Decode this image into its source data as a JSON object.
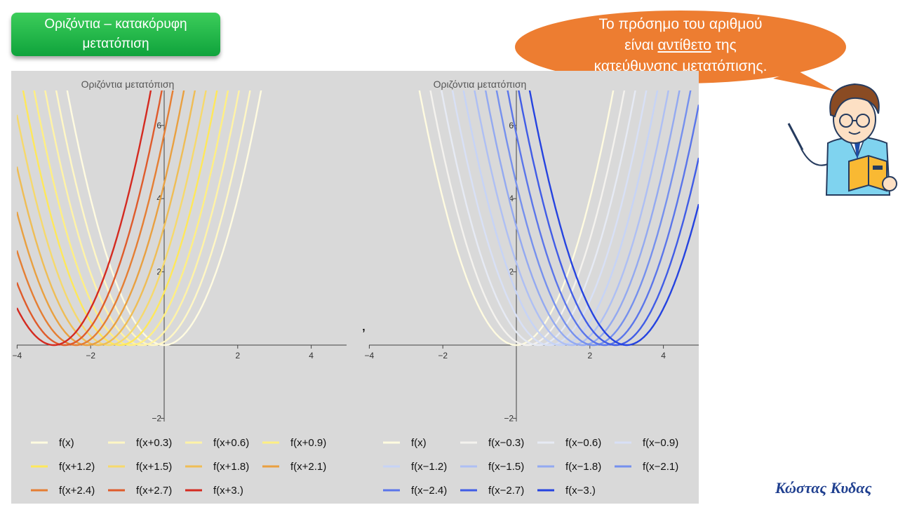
{
  "header": {
    "title_line1": "Οριζόντια – κατακόρυφη",
    "title_line2": "μετατόπιση"
  },
  "callout": {
    "line1": "Το πρόσημο του αριθμού",
    "line2_pre": "είναι ",
    "line2_underlined": "αντίθετο",
    "line2_post": " της",
    "line3": "κατεύθυνσης μετατόπισης.",
    "bubble_color": "#ed7d31"
  },
  "separator": "‚",
  "signature": "Κώστας Κυδας",
  "chart_data": [
    {
      "type": "line",
      "title": "Οριζόντια μετατόπιση",
      "function": "f(x) = x^2",
      "xlim": [
        -4,
        5
      ],
      "ylim": [
        -2,
        7
      ],
      "xticks": [
        "−4",
        "−2",
        "2",
        "4"
      ],
      "yticks": [
        "−2",
        "2",
        "4",
        "6"
      ],
      "series": [
        {
          "name": "f(x)",
          "shift": 0,
          "color": "#fffbe0"
        },
        {
          "name": "f(x+0.3)",
          "shift": -0.3,
          "color": "#fff7c4"
        },
        {
          "name": "f(x+0.6)",
          "shift": -0.6,
          "color": "#fff3a6"
        },
        {
          "name": "f(x+0.9)",
          "shift": -0.9,
          "color": "#ffef82"
        },
        {
          "name": "f(x+1.2)",
          "shift": -1.2,
          "color": "#ffe85a"
        },
        {
          "name": "f(x+1.5)",
          "shift": -1.5,
          "color": "#f6d96c"
        },
        {
          "name": "f(x+1.8)",
          "shift": -1.8,
          "color": "#efbd55"
        },
        {
          "name": "f(x+2.1)",
          "shift": -2.1,
          "color": "#e9a040"
        },
        {
          "name": "f(x+2.4)",
          "shift": -2.4,
          "color": "#e57e33"
        },
        {
          "name": "f(x+2.7)",
          "shift": -2.7,
          "color": "#df5b2b"
        },
        {
          "name": "f(x+3.)",
          "shift": -3.0,
          "color": "#d42a20"
        }
      ]
    },
    {
      "type": "line",
      "title": "Οριζόντια μετατόπιση",
      "function": "f(x) = x^2",
      "xlim": [
        -4,
        5
      ],
      "ylim": [
        -2,
        7
      ],
      "xticks": [
        "−4",
        "−2",
        "2",
        "4"
      ],
      "yticks": [
        "−2",
        "2",
        "4",
        "6"
      ],
      "series": [
        {
          "name": "f(x)",
          "shift": 0,
          "color": "#fffbe0"
        },
        {
          "name": "f(x−0.3)",
          "shift": 0.3,
          "color": "#f4f2ee"
        },
        {
          "name": "f(x−0.6)",
          "shift": 0.6,
          "color": "#e6eaf4"
        },
        {
          "name": "f(x−0.9)",
          "shift": 0.9,
          "color": "#d8e0f6"
        },
        {
          "name": "f(x−1.2)",
          "shift": 1.2,
          "color": "#c6d3f6"
        },
        {
          "name": "f(x−1.5)",
          "shift": 1.5,
          "color": "#aebff4"
        },
        {
          "name": "f(x−1.8)",
          "shift": 1.8,
          "color": "#93a9f1"
        },
        {
          "name": "f(x−2.1)",
          "shift": 2.1,
          "color": "#7590ee"
        },
        {
          "name": "f(x−2.4)",
          "shift": 2.4,
          "color": "#5a75ea"
        },
        {
          "name": "f(x−2.7)",
          "shift": 2.7,
          "color": "#405ce6"
        },
        {
          "name": "f(x−3.)",
          "shift": 3.0,
          "color": "#2543e0"
        }
      ]
    }
  ]
}
